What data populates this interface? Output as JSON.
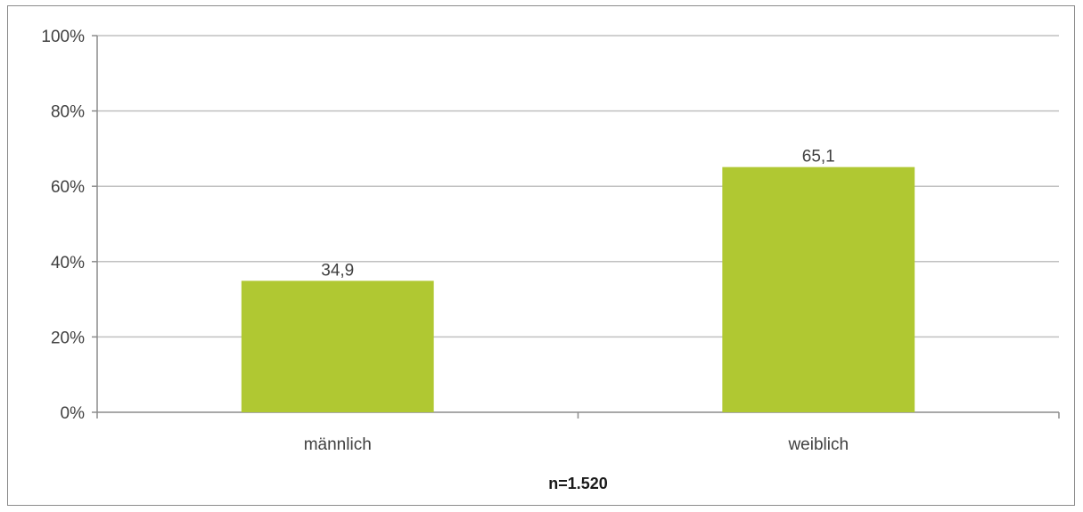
{
  "chart_data": {
    "type": "bar",
    "categories": [
      "männlich",
      "weiblich"
    ],
    "values": [
      34.9,
      65.1
    ],
    "value_labels": [
      "34,9",
      "65,1"
    ],
    "yticks": [
      0,
      20,
      40,
      60,
      80,
      100
    ],
    "ytick_labels": [
      "0%",
      "20%",
      "40%",
      "60%",
      "80%",
      "100%"
    ],
    "ylim": [
      0,
      100
    ],
    "xlabel": "n=1.520",
    "ylabel": "",
    "title": "",
    "grid": true,
    "legend": "none",
    "bar_color": "#b0c832",
    "grid_color": "#c0c0c0"
  }
}
